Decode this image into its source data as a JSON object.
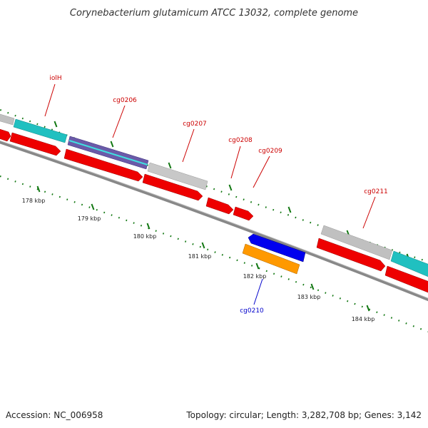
{
  "title": "Corynebacterium glutamicum ATCC 13032, complete genome",
  "footer": {
    "accession": "Accession: NC_006958",
    "summary": "Topology: circular; Length: 3,282,708 bp; Genes: 3,142"
  },
  "colors": {
    "cds_forward": "#ff0000",
    "cds_reverse": "#ff0000",
    "gene": "#c0c0c0",
    "cyan_feature": "#20c0c0",
    "blue_feature": "#0000ee",
    "orange_feature": "#ff9900",
    "purple_feature": "#6050a0",
    "label_forward": "#cc0000",
    "label_reverse": "#0000cc",
    "tick": "#007700",
    "backbone": "#808080"
  },
  "gene_labels": [
    {
      "text": "iolH",
      "strand": "forward"
    },
    {
      "text": "cg0206",
      "strand": "forward"
    },
    {
      "text": "cg0207",
      "strand": "forward"
    },
    {
      "text": "cg0208",
      "strand": "forward"
    },
    {
      "text": "cg0209",
      "strand": "forward"
    },
    {
      "text": "cg0211",
      "strand": "forward"
    },
    {
      "text": "cg0210",
      "strand": "reverse"
    }
  ],
  "tick_labels": [
    "178 kbp",
    "179 kbp",
    "180 kbp",
    "181 kbp",
    "182 kbp",
    "183 kbp",
    "184 kbp"
  ]
}
